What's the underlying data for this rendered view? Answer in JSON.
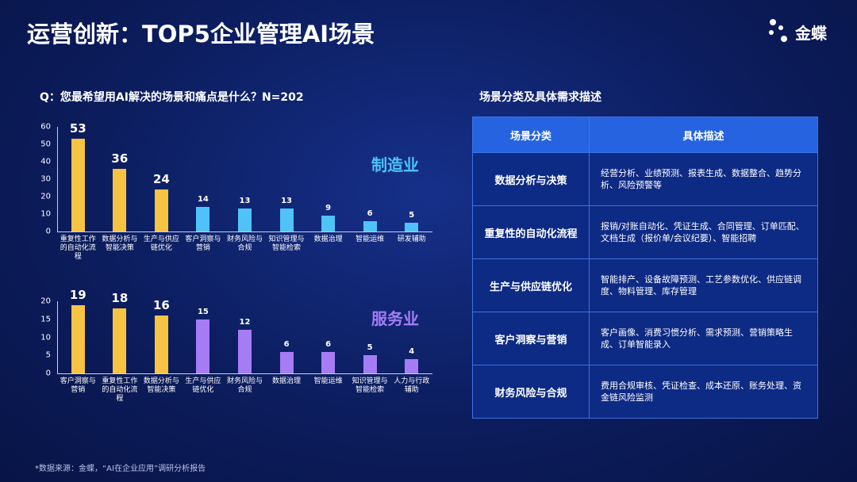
{
  "title": "运营创新：TOP5企业管理AI场景",
  "logo": "金蝶",
  "question": "Q：您最希望用AI解决的场景和痛点是什么？N=202",
  "chart_data": [
    {
      "type": "bar",
      "annotation": "制造业",
      "categories": [
        "重复性工作的自动化流程",
        "数据分析与智能决策",
        "生产与供应链优化",
        "客户洞察与营销",
        "财务风险与合规",
        "知识管理与智能检索",
        "数据治理",
        "智能运维",
        "研发辅助"
      ],
      "values": [
        53,
        36,
        24,
        14,
        13,
        13,
        9,
        6,
        5
      ],
      "colors": [
        "#f6c343",
        "#f6c343",
        "#f6c343",
        "#4fc3f7",
        "#4fc3f7",
        "#4fc3f7",
        "#4fc3f7",
        "#4fc3f7",
        "#4fc3f7"
      ],
      "annotation_color": "#4fc3f7",
      "ylim": [
        0,
        60
      ],
      "yticks": [
        0,
        10,
        20,
        30,
        40,
        50,
        60
      ]
    },
    {
      "type": "bar",
      "annotation": "服务业",
      "categories": [
        "客户洞察与营销",
        "重复性工作的自动化流程",
        "数据分析与智能决策",
        "生产与供应链优化",
        "财务风险与合规",
        "数据治理",
        "智能运维",
        "知识管理与智能检索",
        "人力与行政辅助"
      ],
      "values": [
        19,
        18,
        16,
        15,
        12,
        6,
        6,
        5,
        4
      ],
      "colors": [
        "#f6c343",
        "#f6c343",
        "#f6c343",
        "#a67cf5",
        "#a67cf5",
        "#a67cf5",
        "#a67cf5",
        "#a67cf5",
        "#a67cf5"
      ],
      "annotation_color": "#a67cf5",
      "ylim": [
        0,
        20
      ],
      "yticks": [
        0,
        5,
        10,
        15,
        20
      ]
    }
  ],
  "table": {
    "title": "场景分类及具体需求描述",
    "header": [
      "场景分类",
      "具体描述"
    ],
    "rows": [
      [
        "数据分析与决策",
        "经营分析、业绩预测、报表生成、数据整合、趋势分析、风险预警等"
      ],
      [
        "重复性的自动化流程",
        "报销/对账自动化、凭证生成、合同管理、订单匹配、文档生成（报价单/会议纪要）、智能招聘"
      ],
      [
        "生产与供应链优化",
        "智能排产、设备故障预测、工艺参数优化、供应链调度、物料管理、库存管理"
      ],
      [
        "客户洞察与营销",
        "客户画像、消费习惯分析、需求预测、营销策略生成、订单智能录入"
      ],
      [
        "财务风险与合规",
        "费用合规审核、凭证检查、成本还原、账务处理、资金链风险监测"
      ]
    ]
  },
  "source": "*数据来源：金蝶，“AI在企业应用”调研分析报告"
}
